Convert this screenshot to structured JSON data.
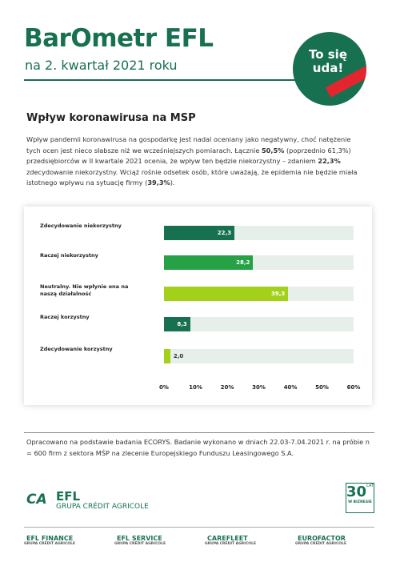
{
  "header": {
    "title": "BarOmetr EFL",
    "subtitle": "na 2. kwartał 2021 roku",
    "badge": "To się uda!"
  },
  "section": {
    "heading": "Wpływ koronawirusa na MSP",
    "intro": [
      {
        "text": "Wpływ pandemii koronawirusa na gospodarkę jest nadal oceniany jako negatywny, choć natężenie tych ocen jest nieco słabsze niż we wcześniejszych pomiarach. Łącznie ",
        "bold": false
      },
      {
        "text": "50,5%",
        "bold": true
      },
      {
        "text": " (poprzednio 61,3%) przedsiębiorców w II kwartale 2021 ocenia, że wpływ ten będzie niekorzystny – zdaniem ",
        "bold": false
      },
      {
        "text": "22,3%",
        "bold": true
      },
      {
        "text": " zdecydowanie niekorzystny. Wciąż rośnie odsetek osób, które uważają, że epidemia nie będzie miała istotnego wpływu na sytuację firmy (",
        "bold": false
      },
      {
        "text": "39,3%",
        "bold": true
      },
      {
        "text": ").",
        "bold": false
      }
    ]
  },
  "chart_data": {
    "type": "barh",
    "categories": [
      "Zdecydowanie niekorzystny",
      "Raczej niekorzystny",
      "Neutralny. Nie wpłynie ona na naszą działalność",
      "Raczej korzystny",
      "Zdecydowanie korzystny"
    ],
    "values": [
      22.3,
      28.2,
      39.3,
      8.3,
      2.0
    ],
    "value_labels": [
      "22,3",
      "28,2",
      "39,3",
      "8,3",
      "2,0"
    ],
    "colors": [
      "#17704f",
      "#26a146",
      "#a3d11a",
      "#17704f",
      "#a3d11a"
    ],
    "xlim": [
      0,
      60
    ],
    "xticks": [
      {
        "value": 0,
        "label": "0%"
      },
      {
        "value": 10,
        "label": "10%"
      },
      {
        "value": 20,
        "label": "20%"
      },
      {
        "value": 30,
        "label": "30%"
      },
      {
        "value": 40,
        "label": "40%"
      },
      {
        "value": 50,
        "label": "50%"
      },
      {
        "value": 60,
        "label": "60%"
      }
    ]
  },
  "footer": {
    "note": "Opracowano na podstawie badania ECORYS. Badanie wykonano w dniach 22.03-7.04.2021 r. na próbie n = 600 firm z sektora MŚP na zlecenie Europejskiego Funduszu Leasingowego S.A.",
    "logo_name": "EFL",
    "logo_group": "GRUPA CRÉDIT AGRICOLE",
    "anniversary": "30",
    "anniversary_unit": "LAT",
    "anniversary_text": "W BIZNESIE",
    "brands": [
      {
        "name": "EFL FINANCE",
        "group": "GRUPA CRÉDIT AGRICOLE"
      },
      {
        "name": "EFL SERVICE",
        "group": "GRUPA CRÉDIT AGRICOLE"
      },
      {
        "name": "CAREFLEET",
        "group": "GRUPA CRÉDIT AGRICOLE"
      },
      {
        "name": "EUROFACTOR",
        "group": "GRUPA CRÉDIT AGRICOLE"
      }
    ]
  }
}
